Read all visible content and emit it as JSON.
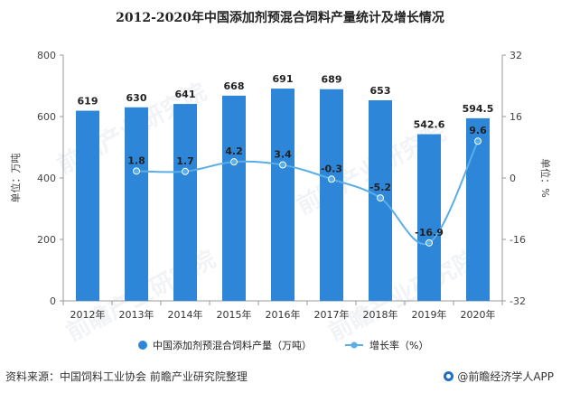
{
  "chart_data": {
    "type": "bar",
    "title": "2012-2020年中国添加剂预混合饲料产量统计及增长情况",
    "categories": [
      "2012年",
      "2013年",
      "2014年",
      "2015年",
      "2016年",
      "2017年",
      "2018年",
      "2019年",
      "2020年"
    ],
    "series": [
      {
        "name": "中国添加剂预混合饲料产量（万吨）",
        "type": "bar",
        "axis": "left",
        "values": [
          619,
          630,
          641,
          668,
          691,
          689,
          653,
          542.6,
          594.5
        ],
        "labels": [
          "619",
          "630",
          "641",
          "668",
          "691",
          "689",
          "653",
          "542.6",
          "594.5"
        ],
        "color": "#2e86d8"
      },
      {
        "name": "增长率（%）",
        "type": "line",
        "axis": "right",
        "values": [
          null,
          1.8,
          1.7,
          4.2,
          3.4,
          -0.3,
          -5.2,
          -16.9,
          9.6
        ],
        "labels": [
          "",
          "1.8",
          "1.7",
          "4.2",
          "3.4",
          "-0.3",
          "-5.2",
          "-16.9",
          "9.6"
        ],
        "color": "#5aaee8"
      }
    ],
    "yleft": {
      "label": "单位：万吨",
      "ticks": [
        "0",
        "200",
        "400",
        "600",
        "800"
      ],
      "range": [
        0,
        800
      ]
    },
    "yright": {
      "label": "单位：%",
      "ticks": [
        "-32",
        "-16",
        "0",
        "16",
        "32"
      ],
      "range": [
        -32,
        32
      ]
    },
    "legend_position": "bottom",
    "grid": false
  },
  "footer": {
    "source": "资料来源：中国饲料工业协会 前瞻产业研究院整理",
    "brand": "@前瞻经济学人APP"
  },
  "watermark": {
    "text": "前瞻产业研究院"
  }
}
